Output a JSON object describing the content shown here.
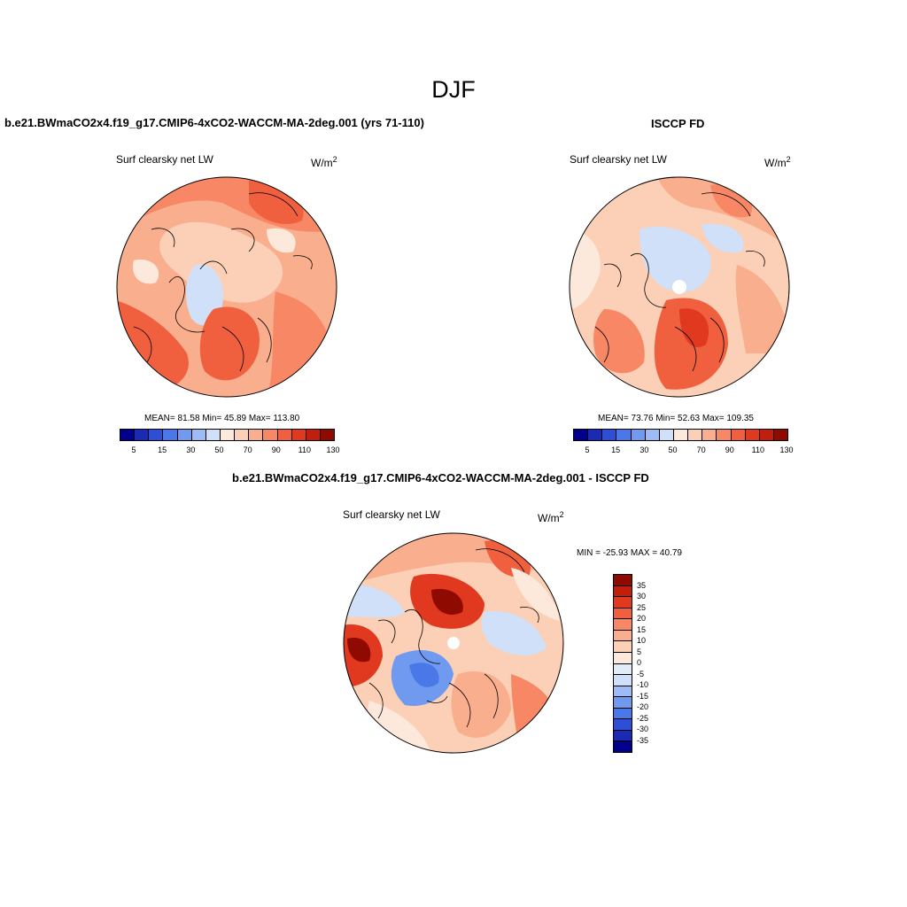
{
  "figure": {
    "season": "DJF"
  },
  "panels": {
    "model": {
      "title": "b.e21.BWmaCO2x4.f19_g17.CMIP6-4xCO2-WACCM-MA-2deg.001 (yrs 71-110)",
      "variable": "Surf clearsky net LW",
      "units": "W/m",
      "units_sup": "2",
      "stats": "MEAN=  81.58  Min=  45.89  Max= 113.80"
    },
    "obs": {
      "title": "ISCCP FD",
      "variable": "Surf clearsky net LW",
      "units": "W/m",
      "units_sup": "2",
      "stats": "MEAN=  73.76  Min=  52.63  Max= 109.35"
    },
    "diff": {
      "title": "b.e21.BWmaCO2x4.f19_g17.CMIP6-4xCO2-WACCM-MA-2deg.001 - ISCCP FD",
      "variable": "Surf clearsky net LW",
      "units": "W/m",
      "units_sup": "2",
      "stats": "MIN = -25.93 MAX =  40.79"
    }
  },
  "colorbars": {
    "absolute": {
      "colors": [
        "#00008c",
        "#1a2ab5",
        "#2c4fd6",
        "#4a78e8",
        "#6f9af0",
        "#9dbcf5",
        "#cfe0f8",
        "#fde9dc",
        "#fcd0b6",
        "#f9ae8e",
        "#f78765",
        "#f0603f",
        "#e0391f",
        "#c21e0c",
        "#8f0a00"
      ],
      "tick_labels": [
        "5",
        "15",
        "30",
        "50",
        "70",
        "90",
        "110",
        "130"
      ]
    },
    "difference": {
      "colors": [
        "#8f0a00",
        "#c21e0c",
        "#e0391f",
        "#f0603f",
        "#f78765",
        "#f9ae8e",
        "#fcd0b6",
        "#fde9dc",
        "#e2ecf8",
        "#cfe0f8",
        "#9dbcf5",
        "#6f9af0",
        "#4a78e8",
        "#2c4fd6",
        "#1a2ab5",
        "#00008c"
      ],
      "tick_labels": [
        "35",
        "30",
        "25",
        "20",
        "15",
        "10",
        "5",
        "0",
        "-5",
        "-10",
        "-15",
        "-20",
        "-25",
        "-30",
        "-35"
      ]
    }
  }
}
